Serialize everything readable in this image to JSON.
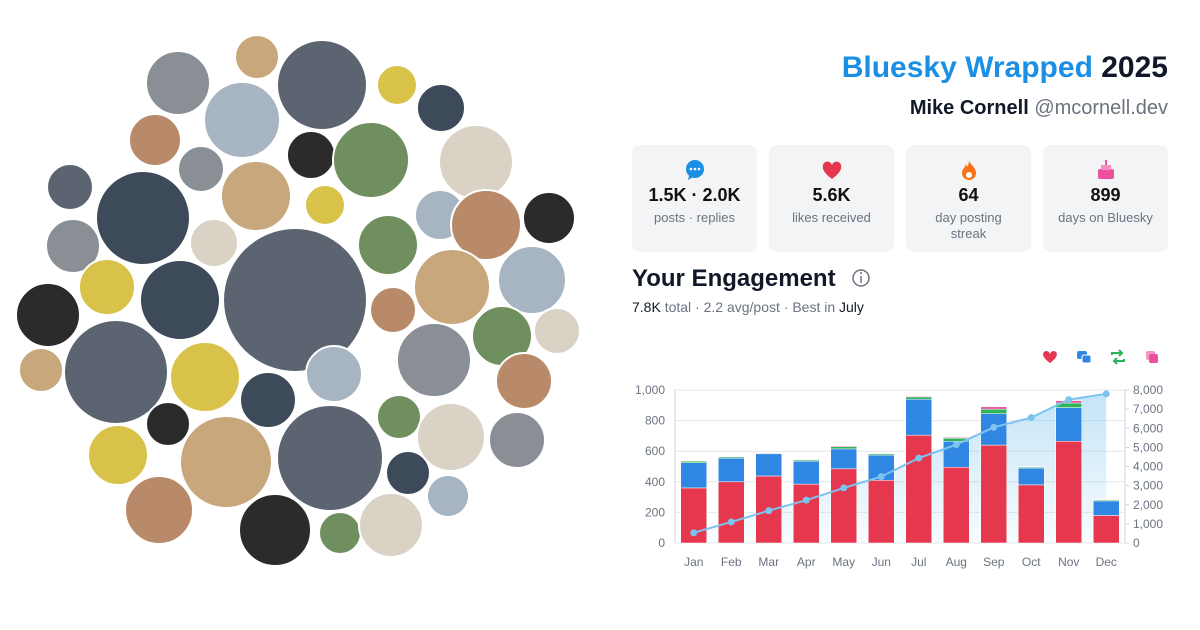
{
  "header": {
    "title": "Bluesky Wrapped",
    "year": "2025",
    "name": "Mike Cornell",
    "handle": "@mcornell.dev"
  },
  "stats": [
    {
      "value": "1.5K · 2.0K",
      "label": "posts · replies"
    },
    {
      "value": "5.6K",
      "label": "likes received"
    },
    {
      "value": "64",
      "label": "day posting streak"
    },
    {
      "value": "899",
      "label": "days on Bluesky"
    }
  ],
  "engagement": {
    "title": "Your Engagement",
    "total": "7.8K",
    "middle": "total · 2.2 avg/post · Best in",
    "best": "July"
  },
  "chart_data": {
    "type": "stacked-bar-line",
    "categories": [
      "Jan",
      "Feb",
      "Mar",
      "Apr",
      "May",
      "Jun",
      "Jul",
      "Aug",
      "Sep",
      "Oct",
      "Nov",
      "Dec"
    ],
    "series": [
      {
        "color": "#e5384f",
        "values": [
          360,
          400,
          438,
          385,
          485,
          410,
          705,
          495,
          640,
          380,
          665,
          180
        ]
      },
      {
        "color": "#2f86e3",
        "values": [
          165,
          155,
          145,
          150,
          130,
          165,
          235,
          170,
          205,
          110,
          220,
          95
        ]
      },
      {
        "color": "#2eb35a",
        "values": [
          10,
          8,
          5,
          8,
          15,
          8,
          15,
          20,
          30,
          7,
          30,
          7
        ]
      },
      {
        "color": "#ec4f9b",
        "values": [
          3,
          2,
          2,
          2,
          5,
          2,
          5,
          5,
          15,
          3,
          15,
          3
        ]
      },
      {
        "color": "#7cc4ee",
        "axis": "y2",
        "values": [
          535,
          1100,
          1690,
          2240,
          2880,
          3470,
          4440,
          5140,
          6050,
          6560,
          7500,
          7800
        ]
      }
    ],
    "ylim": [
      0,
      1000
    ],
    "yticks": [
      0,
      200,
      400,
      600,
      800,
      {
        "value": 1000,
        "label": "1,000"
      }
    ],
    "y2lim": [
      0,
      8000
    ],
    "y2ticks": [
      0,
      {
        "value": 1000,
        "label": "1,000"
      },
      {
        "value": 2000,
        "label": "2,000"
      },
      {
        "value": 3000,
        "label": "3,000"
      },
      {
        "value": 4000,
        "label": "4,000"
      },
      {
        "value": 5000,
        "label": "5,000"
      },
      {
        "value": 6000,
        "label": "6,000"
      },
      {
        "value": 7000,
        "label": "7,000"
      },
      {
        "value": 8000,
        "label": "8,000"
      }
    ],
    "grid": true
  }
}
